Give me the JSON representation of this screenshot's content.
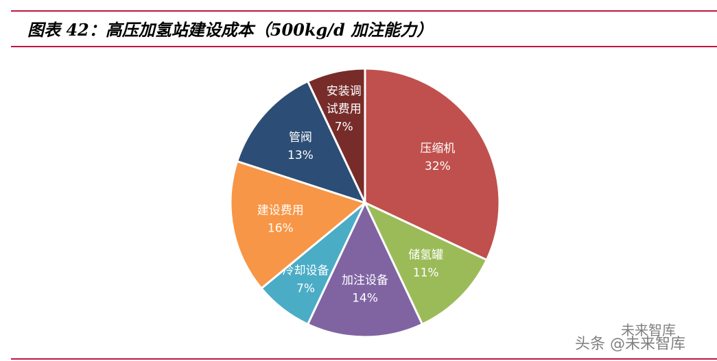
{
  "title": "图表 42：高压加氢站建设成本（500kg/d 加注能力）",
  "chart_data": {
    "type": "pie",
    "title": "",
    "start": "top",
    "direction": "clockwise",
    "slices": [
      {
        "label": "压缩机",
        "value": 32,
        "display": "32%",
        "color": "#C0504D"
      },
      {
        "label": "储氢罐",
        "value": 11,
        "display": "11%",
        "color": "#9BBB59"
      },
      {
        "label": "加注设备",
        "value": 14,
        "display": "14%",
        "color": "#8064A2"
      },
      {
        "label": "冷却设备",
        "value": 7,
        "display": "7%",
        "color": "#4BACC6"
      },
      {
        "label": "建设费用",
        "value": 16,
        "display": "16%",
        "color": "#F79646"
      },
      {
        "label": "管阀",
        "value": 13,
        "display": "13%",
        "color": "#2C4D75"
      },
      {
        "label": "安装调\n试费用",
        "value": 7,
        "display": "7%",
        "color": "#772C2A"
      }
    ]
  },
  "watermark": {
    "line1": "未来智库",
    "line2": "头条 @未来智库"
  }
}
